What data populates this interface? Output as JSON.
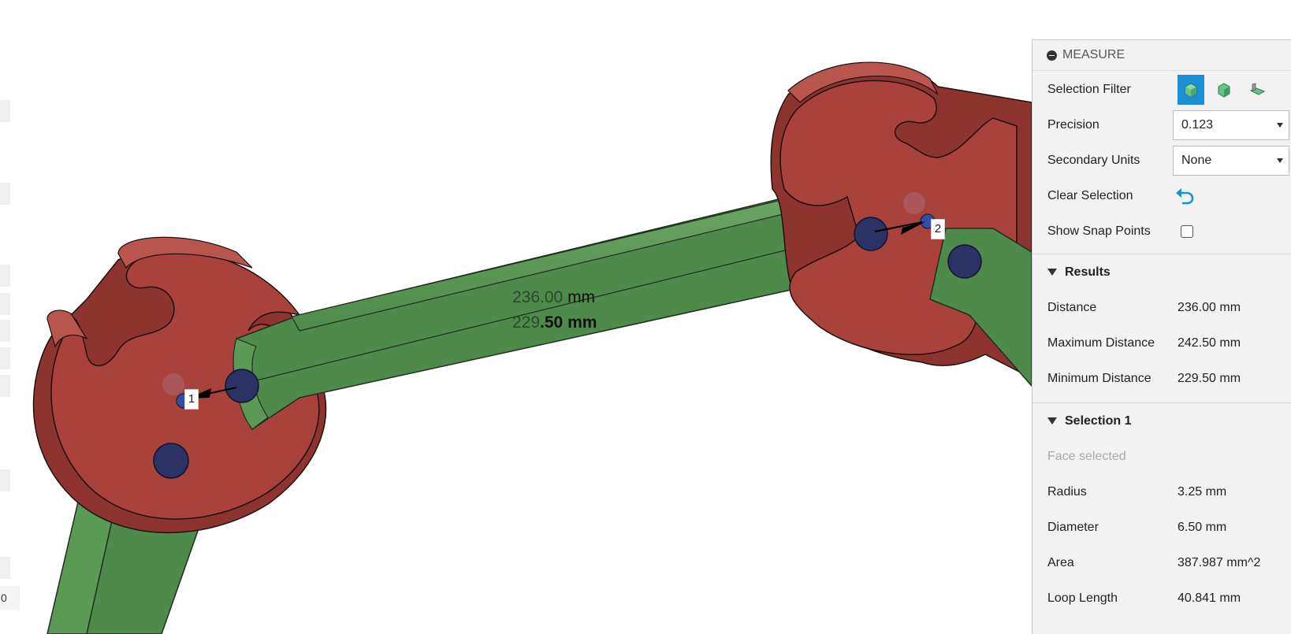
{
  "panel": {
    "title": "MEASURE",
    "selection_filter": {
      "label": "Selection Filter",
      "options": [
        "body-filter-icon",
        "face-filter-icon",
        "edge-filter-icon"
      ],
      "active_index": 0
    },
    "precision": {
      "label": "Precision",
      "value": "0.123"
    },
    "secondary_units": {
      "label": "Secondary Units",
      "value": "None"
    },
    "clear_selection": {
      "label": "Clear Selection",
      "icon": "undo-arrow-icon"
    },
    "show_snap_points": {
      "label": "Show Snap Points",
      "checked": false
    },
    "results": {
      "title": "Results",
      "rows": [
        {
          "label": "Distance",
          "value": "236.00 mm"
        },
        {
          "label": "Maximum Distance",
          "value": "242.50 mm"
        },
        {
          "label": "Minimum Distance",
          "value": "229.50 mm"
        }
      ]
    },
    "selection1": {
      "title": "Selection 1",
      "info": "Face selected",
      "rows": [
        {
          "label": "Radius",
          "value": "3.25 mm"
        },
        {
          "label": "Diameter",
          "value": "6.50 mm"
        },
        {
          "label": "Area",
          "value": "387.987 mm^2"
        },
        {
          "label": "Loop Length",
          "value": "40.841 mm"
        }
      ]
    }
  },
  "viewport": {
    "overlay_primary_number": "236.00",
    "overlay_primary_unit": " mm",
    "overlay_secondary_number": "229",
    "overlay_secondary_rest": ".50 mm",
    "point1_label": "1",
    "point2_label": "2",
    "left_field_value": "0"
  },
  "colors": {
    "accent": "#1a8fd6",
    "part_red": "#a8423a",
    "part_green": "#4e8a49",
    "joint_blue": "#2b3266"
  }
}
